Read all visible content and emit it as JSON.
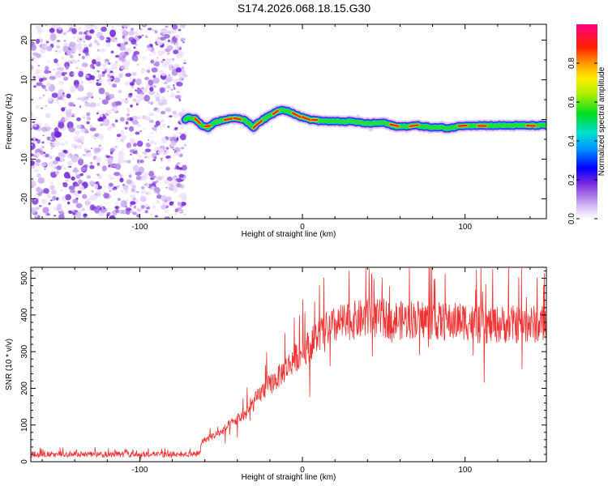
{
  "title": "S174.2026.068.18.15.G30",
  "chart_data": [
    {
      "type": "heatmap",
      "xlabel": "Height of straight line (km)",
      "ylabel": "Frequency (Hz)",
      "xlim": [
        -167,
        150
      ],
      "ylim": [
        -25,
        24
      ],
      "xticks": [
        -100,
        0,
        100
      ],
      "xtick_labels": [
        "-100",
        "0",
        "100"
      ],
      "yticks": [
        -20,
        -10,
        0,
        10,
        20
      ],
      "ytick_labels": [
        "-20",
        "-10",
        "0",
        "10",
        "20"
      ],
      "noise_region_x": [
        -167,
        -72
      ],
      "ridge": {
        "x": [
          -72,
          -70,
          -66,
          -62,
          -58,
          -55,
          -52,
          -48,
          -44,
          -40,
          -36,
          -33,
          -30,
          -28,
          -24,
          -20,
          -16,
          -12,
          -8,
          -4,
          0,
          5,
          10,
          20,
          30,
          40,
          50,
          55,
          60,
          70,
          80,
          85,
          90,
          95,
          100,
          110,
          120,
          130,
          140,
          150
        ],
        "freq": [
          0.0,
          0.5,
          0.2,
          -1.5,
          -2.0,
          -1.0,
          -0.5,
          0.0,
          0.3,
          0.2,
          0.0,
          -1.0,
          -2.0,
          -1.0,
          0.0,
          1.0,
          2.0,
          2.5,
          2.0,
          1.2,
          0.5,
          0.0,
          -0.3,
          -0.5,
          -0.5,
          -1.0,
          -0.8,
          -1.5,
          -1.8,
          -1.5,
          -2.0,
          -2.0,
          -2.2,
          -1.8,
          -1.5,
          -1.5,
          -1.5,
          -1.5,
          -1.5,
          -1.5
        ]
      },
      "colorbar": {
        "label": "Normalized spectral amplitude",
        "range": [
          0,
          1
        ],
        "ticks": [
          0.0,
          0.2,
          0.4,
          0.6,
          0.8
        ],
        "tick_labels": [
          "0.0",
          "0.2",
          "0.4",
          "0.6",
          "0.8"
        ]
      }
    },
    {
      "type": "line",
      "xlabel": "Height of straight line (km)",
      "ylabel": "SNR (10 * v/v)",
      "xlim": [
        -167,
        150
      ],
      "ylim": [
        0,
        530
      ],
      "xticks": [
        -100,
        0,
        100
      ],
      "xtick_labels": [
        "-100",
        "0",
        "100"
      ],
      "yticks": [
        0,
        100,
        200,
        300,
        400,
        500
      ],
      "ytick_labels": [
        "0",
        "100",
        "200",
        "300",
        "400",
        "500"
      ],
      "series": [
        {
          "name": "SNR",
          "color": "#ee3333",
          "x": [
            -167,
            -140,
            -110,
            -80,
            -63,
            -62,
            -55,
            -50,
            -45,
            -40,
            -35,
            -30,
            -25,
            -20,
            -15,
            -10,
            -5,
            0,
            5,
            10,
            15,
            20,
            25,
            30,
            40,
            50,
            60,
            70,
            80,
            90,
            100,
            110,
            120,
            130,
            140,
            150
          ],
          "y": [
            20,
            20,
            20,
            20,
            22,
            55,
            70,
            80,
            100,
            115,
            130,
            160,
            190,
            210,
            230,
            255,
            280,
            300,
            320,
            345,
            360,
            370,
            380,
            385,
            390,
            390,
            385,
            390,
            385,
            380,
            385,
            370,
            375,
            375,
            375,
            375
          ]
        }
      ]
    }
  ]
}
